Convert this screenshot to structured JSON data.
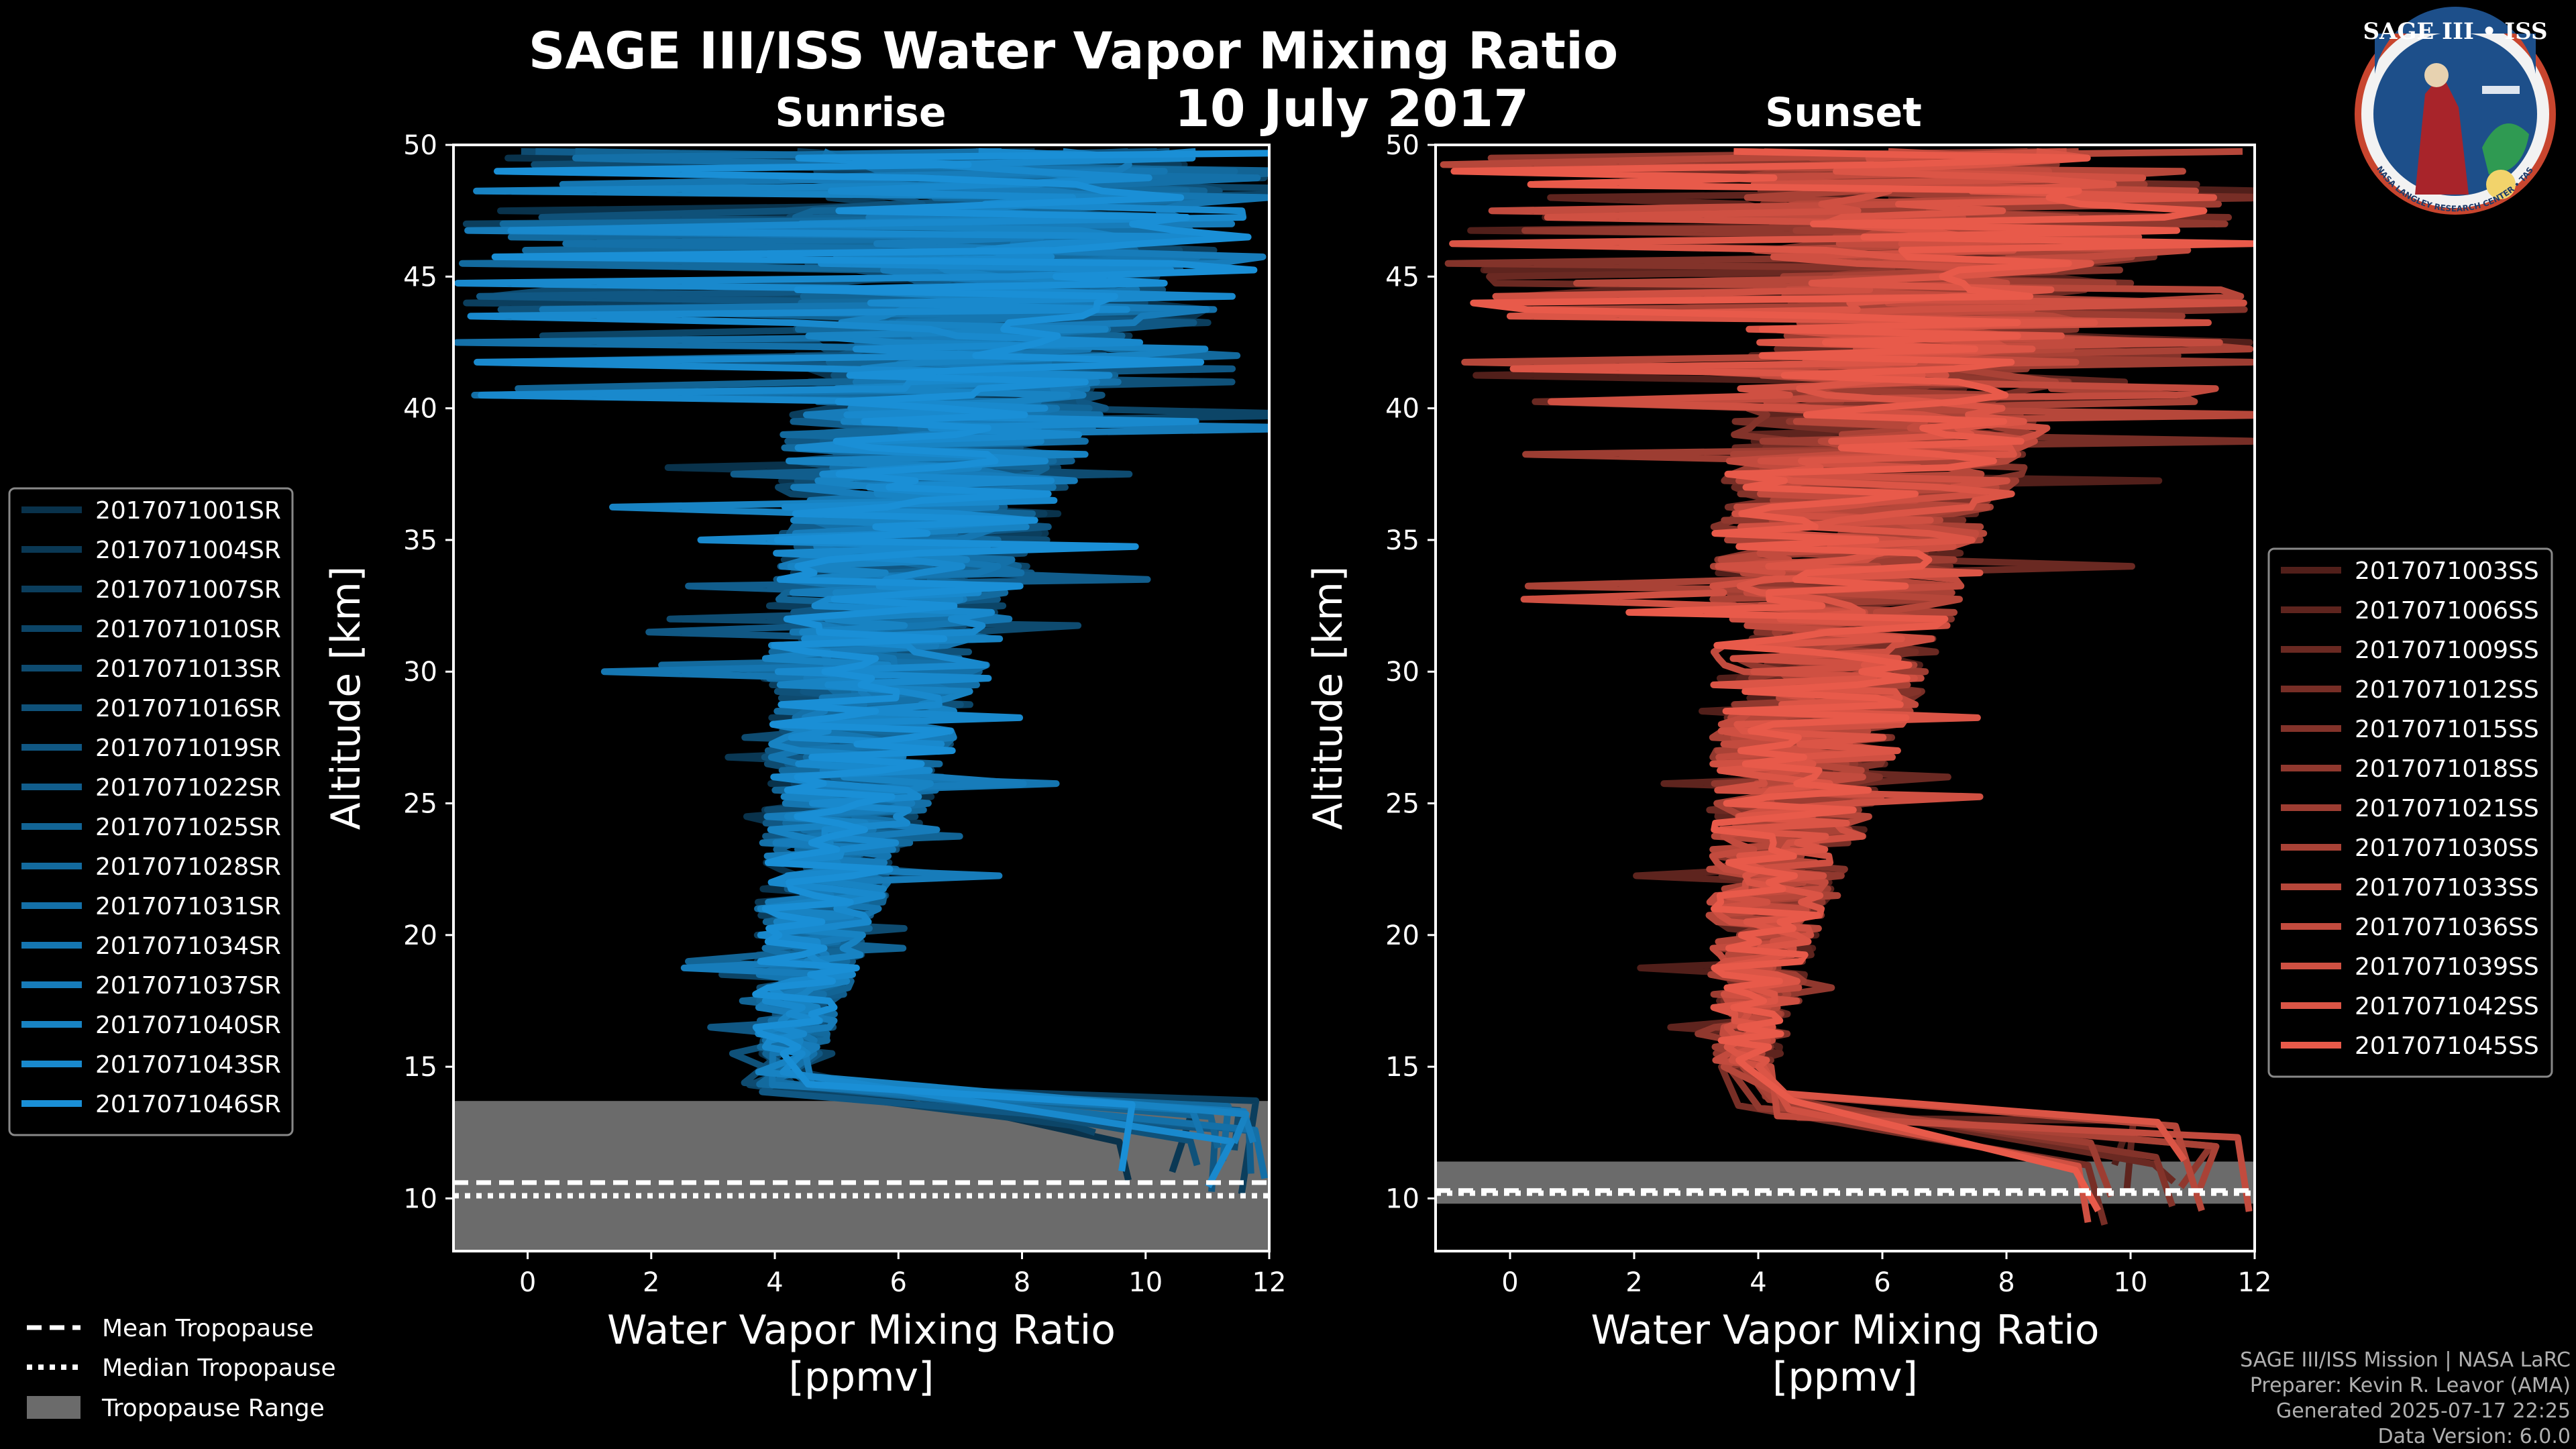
{
  "title": "SAGE III/ISS Water Vapor Mixing Ratio",
  "date": "10 July 2017",
  "colors": {
    "sunrise": "#1a8fd6",
    "sunset": "#e85a4a",
    "tropo_fill": "#6b6b6b",
    "background": "#000000"
  },
  "chart_data": [
    {
      "type": "line",
      "panel": "Sunrise",
      "title": "Sunrise",
      "xlabel": "Water Vapor Mixing Ratio [ppmv]",
      "ylabel": "Altitude [km]",
      "xlim": [
        -1.2,
        12
      ],
      "ylim": [
        8,
        50
      ],
      "xticks": [
        0,
        2,
        4,
        6,
        8,
        10,
        12
      ],
      "yticks": [
        10,
        15,
        20,
        25,
        30,
        35,
        40,
        45,
        50
      ],
      "series_names": [
        "2017071001SR",
        "2017071004SR",
        "2017071007SR",
        "2017071010SR",
        "2017071013SR",
        "2017071016SR",
        "2017071019SR",
        "2017071022SR",
        "2017071025SR",
        "2017071028SR",
        "2017071031SR",
        "2017071034SR",
        "2017071037SR",
        "2017071040SR",
        "2017071043SR",
        "2017071046SR"
      ],
      "profile_model": {
        "tropo_altitude": 13.5,
        "minimum_altitude": 15.5,
        "stratosphere_center": [
          [
            15,
            4.2
          ],
          [
            20,
            4.6
          ],
          [
            25,
            5.2
          ],
          [
            30,
            5.6
          ],
          [
            35,
            6.2
          ],
          [
            40,
            6.8
          ],
          [
            45,
            7.4
          ]
        ]
      },
      "tropopause": {
        "mean": 10.6,
        "median": 10.1,
        "range": [
          8,
          13.7
        ]
      },
      "legend_location": "left"
    },
    {
      "type": "line",
      "panel": "Sunset",
      "title": "Sunset",
      "xlabel": "Water Vapor Mixing Ratio [ppmv]",
      "ylabel": "Altitude [km]",
      "xlim": [
        -1.2,
        12
      ],
      "ylim": [
        8,
        50
      ],
      "xticks": [
        0,
        2,
        4,
        6,
        8,
        10,
        12
      ],
      "yticks": [
        10,
        15,
        20,
        25,
        30,
        35,
        40,
        45,
        50
      ],
      "series_names": [
        "2017071003SS",
        "2017071006SS",
        "2017071009SS",
        "2017071012SS",
        "2017071015SS",
        "2017071018SS",
        "2017071021SS",
        "2017071030SS",
        "2017071033SS",
        "2017071036SS",
        "2017071039SS",
        "2017071042SS",
        "2017071045SS"
      ],
      "profile_model": {
        "tropo_altitude": 12.5,
        "minimum_altitude": 15,
        "stratosphere_center": [
          [
            15,
            3.8
          ],
          [
            20,
            4.1
          ],
          [
            25,
            4.6
          ],
          [
            30,
            5.0
          ],
          [
            35,
            5.5
          ],
          [
            40,
            6.2
          ],
          [
            45,
            7.0
          ]
        ]
      },
      "tropopause": {
        "mean": 10.3,
        "median": 10.2,
        "range": [
          9.8,
          11.4
        ]
      },
      "legend_location": "right"
    }
  ],
  "tropo_legend": {
    "mean": "Mean Tropopause",
    "median": "Median Tropopause",
    "range": "Tropopause Range"
  },
  "logo": {
    "title": "SAGE III • ISS",
    "ring_text": "BALL • NASA LANGLEY RESEARCH CENTER • TAS-I • ESA"
  },
  "footer": [
    "SAGE III/ISS Mission | NASA LaRC",
    "Preparer: Kevin R. Leavor (AMA)",
    "Generated 2025-07-17 22:25",
    "Data Version: 6.0.0"
  ]
}
